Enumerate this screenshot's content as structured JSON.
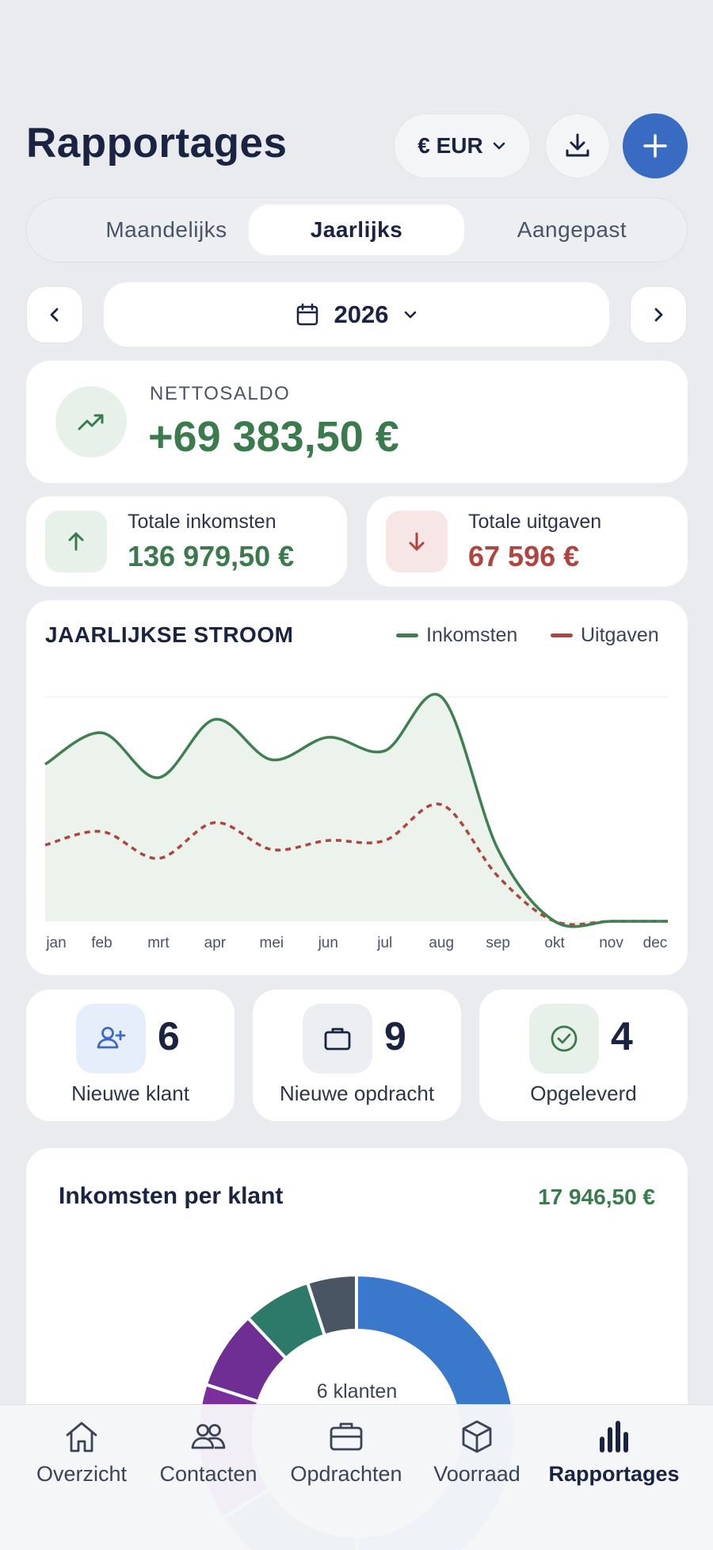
{
  "header": {
    "title": "Rapportages",
    "currency_label": "€ EUR",
    "download_icon": "download-icon",
    "add_icon": "plus-icon"
  },
  "tabs": [
    {
      "label": "Maandelijks",
      "active": false
    },
    {
      "label": "Jaarlijks",
      "active": true
    },
    {
      "label": "Aangepast",
      "active": false
    }
  ],
  "period": {
    "year": "2026"
  },
  "net": {
    "label": "NETTOSALDO",
    "value": "+69 383,50 €"
  },
  "income_total": {
    "label": "Totale inkomsten",
    "value": "136 979,50 €"
  },
  "expense_total": {
    "label": "Totale uitgaven",
    "value": "67 596 €"
  },
  "colors": {
    "income": "#3f7f52",
    "expense": "#b0443f",
    "accent": "#3a6bc2",
    "combined": "#4a5160"
  },
  "chart_data": {
    "type": "line",
    "title": "JAARLIJKSE STROOM",
    "categories": [
      "jan",
      "feb",
      "mrt",
      "apr",
      "mei",
      "jun",
      "jul",
      "aug",
      "sep",
      "okt",
      "nov",
      "dec"
    ],
    "series": [
      {
        "name": "Inkomsten",
        "values": [
          17.5,
          21,
          16,
          22.5,
          18,
          20.5,
          19,
          25,
          8,
          0,
          0,
          0
        ]
      },
      {
        "name": "Uitgaven",
        "values": [
          8.5,
          10,
          7,
          11,
          8,
          9,
          9,
          13,
          5,
          0,
          0,
          0
        ]
      }
    ],
    "ylim": [
      0,
      25
    ],
    "legend_position": "top-right",
    "grid": false
  },
  "stats": [
    {
      "value": "6",
      "label": "Nieuwe klant",
      "icon": "user-plus-icon"
    },
    {
      "value": "9",
      "label": "Nieuwe opdracht",
      "icon": "briefcase-icon"
    },
    {
      "value": "4",
      "label": "Opgeleverd",
      "icon": "check-circle-icon"
    }
  ],
  "clients": {
    "title": "Inkomsten per klant",
    "total": "17 946,50 €",
    "center_label": "6 klanten",
    "chart_data": {
      "type": "pie",
      "slices": [
        {
          "value": 50,
          "color": "#3a78cc"
        },
        {
          "value": 16,
          "color": "#2f7b9a"
        },
        {
          "value": 14,
          "color": "#7a2f9c"
        },
        {
          "value": 8,
          "color": "#6e2e94"
        },
        {
          "value": 7,
          "color": "#2e7a6a"
        },
        {
          "value": 5,
          "color": "#4a5563"
        }
      ]
    }
  },
  "bottom_nav": [
    {
      "label": "Overzicht",
      "icon": "home-icon",
      "active": false
    },
    {
      "label": "Contacten",
      "icon": "contacts-icon",
      "active": false
    },
    {
      "label": "Opdrachten",
      "icon": "briefcase-icon",
      "active": false
    },
    {
      "label": "Voorraad",
      "icon": "box-icon",
      "active": false
    },
    {
      "label": "Rapportages",
      "icon": "bar-chart-icon",
      "active": true
    }
  ]
}
